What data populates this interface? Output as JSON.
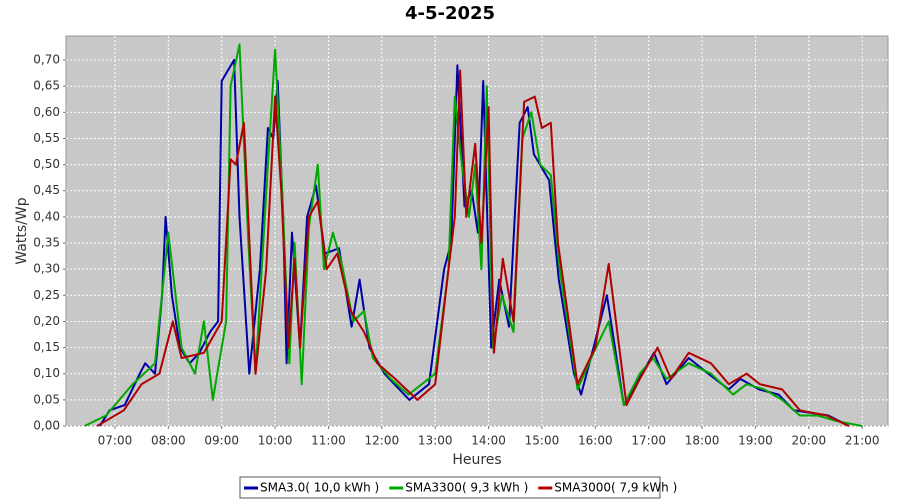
{
  "chart_data": {
    "type": "line",
    "title": "4-5-2025",
    "x_label": "Heures",
    "y_label": "Watts/Wp",
    "xlim": [
      "06:05",
      "21:29"
    ],
    "xticks": [
      "07:00",
      "08:00",
      "09:00",
      "10:00",
      "11:00",
      "12:00",
      "13:00",
      "14:00",
      "15:00",
      "16:00",
      "17:00",
      "18:00",
      "19:00",
      "20:00",
      "21:00"
    ],
    "ylim": [
      0,
      0.746
    ],
    "yticks": [
      {
        "value": 0,
        "label": "0,00"
      },
      {
        "value": 0.05,
        "label": "0,05"
      },
      {
        "value": 0.1,
        "label": "0,10"
      },
      {
        "value": 0.15,
        "label": "0,15"
      },
      {
        "value": 0.2,
        "label": "0,20"
      },
      {
        "value": 0.25,
        "label": "0,25"
      },
      {
        "value": 0.3,
        "label": "0,30"
      },
      {
        "value": 0.35,
        "label": "0,35"
      },
      {
        "value": 0.4,
        "label": "0,40"
      },
      {
        "value": 0.45,
        "label": "0,45"
      },
      {
        "value": 0.5,
        "label": "0,50"
      },
      {
        "value": 0.55,
        "label": "0,55"
      },
      {
        "value": 0.6,
        "label": "0,60"
      },
      {
        "value": 0.65,
        "label": "0,65"
      },
      {
        "value": 0.7,
        "label": "0,70"
      }
    ],
    "grid": true,
    "series": [
      {
        "name": "SMA3.0( 10,0 kWh )",
        "color": "#0000a8",
        "x": [
          "06:43",
          "06:54",
          "07:11",
          "07:28",
          "07:34",
          "07:45",
          "07:53",
          "07:57",
          "08:04",
          "08:13",
          "08:24",
          "08:35",
          "08:47",
          "08:56",
          "09:00",
          "09:14",
          "09:20",
          "09:31",
          "09:43",
          "09:52",
          "09:58",
          "10:03",
          "10:09",
          "10:13",
          "10:19",
          "10:28",
          "10:36",
          "10:46",
          "10:56",
          "11:12",
          "11:26",
          "11:35",
          "11:46",
          "12:03",
          "12:31",
          "12:53",
          "13:10",
          "13:18",
          "13:25",
          "13:33",
          "13:41",
          "13:48",
          "13:54",
          "14:03",
          "14:12",
          "14:23",
          "14:35",
          "14:44",
          "14:51",
          "15:08",
          "15:19",
          "15:36",
          "15:44",
          "15:58",
          "16:13",
          "16:32",
          "16:49",
          "17:06",
          "17:20",
          "17:45",
          "18:07",
          "18:30",
          "18:43",
          "19:04",
          "19:26",
          "19:43",
          "20:22",
          "20:45"
        ],
        "values": [
          0,
          0.03,
          0.04,
          0.1,
          0.12,
          0.1,
          0.25,
          0.4,
          0.25,
          0.15,
          0.12,
          0.14,
          0.18,
          0.2,
          0.66,
          0.7,
          0.4,
          0.1,
          0.3,
          0.57,
          0.55,
          0.66,
          0.4,
          0.12,
          0.37,
          0.15,
          0.4,
          0.46,
          0.33,
          0.34,
          0.19,
          0.28,
          0.15,
          0.1,
          0.05,
          0.08,
          0.3,
          0.35,
          0.69,
          0.42,
          0.45,
          0.37,
          0.66,
          0.15,
          0.28,
          0.19,
          0.58,
          0.61,
          0.52,
          0.47,
          0.28,
          0.1,
          0.06,
          0.15,
          0.25,
          0.04,
          0.09,
          0.14,
          0.08,
          0.13,
          0.1,
          0.07,
          0.09,
          0.07,
          0.06,
          0.03,
          0.02,
          0
        ]
      },
      {
        "name": "SMA3300( 9,3 kWh )",
        "color": "#00a800",
        "x": [
          "06:26",
          "06:50",
          "07:20",
          "07:45",
          "08:00",
          "08:15",
          "08:30",
          "08:40",
          "08:50",
          "09:05",
          "09:10",
          "09:20",
          "09:30",
          "09:38",
          "09:52",
          "10:00",
          "10:08",
          "10:16",
          "10:22",
          "10:30",
          "10:38",
          "10:48",
          "10:55",
          "11:05",
          "11:15",
          "11:28",
          "11:40",
          "11:50",
          "12:10",
          "12:30",
          "13:00",
          "13:15",
          "13:22",
          "13:30",
          "13:38",
          "13:45",
          "13:52",
          "13:58",
          "14:05",
          "14:15",
          "14:28",
          "14:38",
          "14:48",
          "14:58",
          "15:10",
          "15:20",
          "15:40",
          "15:58",
          "16:15",
          "16:32",
          "16:50",
          "17:05",
          "17:20",
          "17:45",
          "18:10",
          "18:35",
          "18:50",
          "19:10",
          "19:30",
          "19:50",
          "20:10",
          "20:30",
          "21:00"
        ],
        "values": [
          0,
          0.02,
          0.08,
          0.12,
          0.37,
          0.15,
          0.1,
          0.2,
          0.05,
          0.2,
          0.65,
          0.73,
          0.35,
          0.1,
          0.5,
          0.72,
          0.45,
          0.12,
          0.35,
          0.08,
          0.38,
          0.5,
          0.3,
          0.37,
          0.31,
          0.2,
          0.22,
          0.13,
          0.09,
          0.06,
          0.1,
          0.3,
          0.63,
          0.5,
          0.4,
          0.5,
          0.3,
          0.65,
          0.15,
          0.25,
          0.18,
          0.55,
          0.6,
          0.5,
          0.48,
          0.3,
          0.07,
          0.14,
          0.2,
          0.04,
          0.1,
          0.13,
          0.09,
          0.12,
          0.1,
          0.06,
          0.08,
          0.07,
          0.05,
          0.02,
          0.02,
          0.01,
          0
        ]
      },
      {
        "name": "SMA3000( 7,9 kWh )",
        "color": "#b00000",
        "x": [
          "06:40",
          "07:10",
          "07:30",
          "07:50",
          "08:05",
          "08:15",
          "08:40",
          "09:00",
          "09:10",
          "09:16",
          "09:25",
          "09:38",
          "09:50",
          "10:00",
          "10:07",
          "10:15",
          "10:22",
          "10:28",
          "10:38",
          "10:48",
          "10:58",
          "11:10",
          "11:25",
          "11:40",
          "11:55",
          "12:15",
          "12:40",
          "13:00",
          "13:15",
          "13:22",
          "13:28",
          "13:35",
          "13:45",
          "13:52",
          "14:00",
          "14:06",
          "14:16",
          "14:28",
          "14:40",
          "14:52",
          "15:00",
          "15:10",
          "15:18",
          "15:40",
          "16:00",
          "16:15",
          "16:35",
          "16:50",
          "17:10",
          "17:25",
          "17:45",
          "18:10",
          "18:30",
          "18:50",
          "19:05",
          "19:30",
          "19:50",
          "20:20",
          "20:45"
        ],
        "values": [
          0,
          0.03,
          0.08,
          0.1,
          0.2,
          0.13,
          0.14,
          0.2,
          0.51,
          0.5,
          0.58,
          0.1,
          0.3,
          0.63,
          0.45,
          0.15,
          0.32,
          0.15,
          0.4,
          0.43,
          0.3,
          0.33,
          0.22,
          0.18,
          0.12,
          0.09,
          0.05,
          0.08,
          0.3,
          0.4,
          0.68,
          0.4,
          0.54,
          0.35,
          0.61,
          0.14,
          0.32,
          0.2,
          0.62,
          0.63,
          0.57,
          0.58,
          0.35,
          0.08,
          0.15,
          0.31,
          0.04,
          0.09,
          0.15,
          0.09,
          0.14,
          0.12,
          0.08,
          0.1,
          0.08,
          0.07,
          0.03,
          0.02,
          0
        ]
      }
    ]
  }
}
